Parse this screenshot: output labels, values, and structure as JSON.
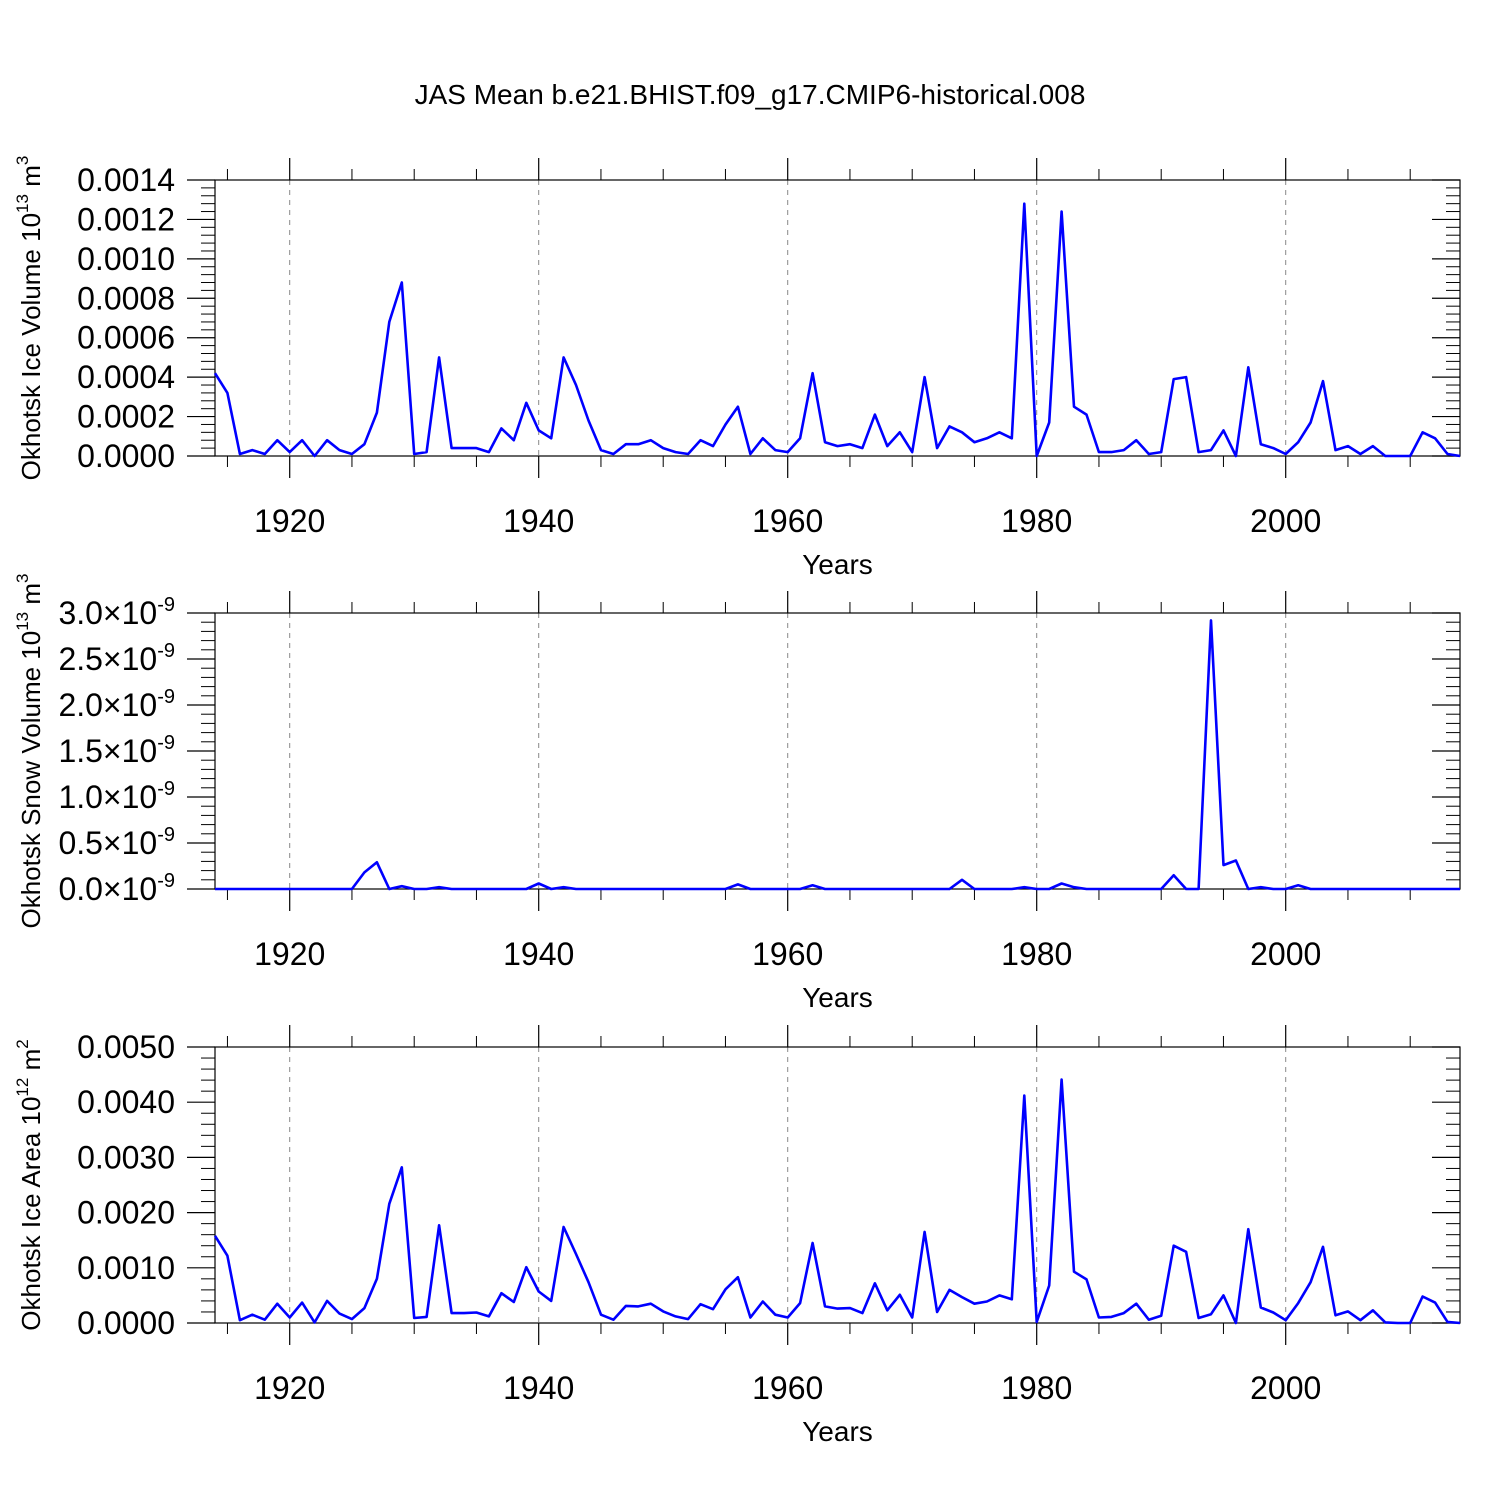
{
  "figure": {
    "title": "JAS Mean b.e21.BHIST.f09_g17.CMIP6-historical.008"
  },
  "colors": {
    "line": "#0000ff",
    "axis": "#000000",
    "grid": "#888888"
  },
  "chart_data": [
    {
      "type": "line",
      "xlabel": "Years",
      "ylabel": "Okhotsk Ice Volume 10",
      "ylabel_exp": "13",
      "ylabel_unit": " m",
      "ylabel_unit_exp": "3",
      "xlim": [
        1914,
        2014
      ],
      "ylim": [
        0,
        0.0014
      ],
      "xticks": [
        1920,
        1940,
        1960,
        1980,
        2000
      ],
      "xtick_labels": [
        "1920",
        "1940",
        "1960",
        "1980",
        "2000"
      ],
      "yticks": [
        0,
        0.0002,
        0.0004,
        0.0006,
        0.0008,
        0.001,
        0.0012,
        0.0014
      ],
      "ytick_labels": [
        "0.0000",
        "0.0002",
        "0.0004",
        "0.0006",
        "0.0008",
        "0.0010",
        "0.0012",
        "0.0014"
      ],
      "grid": "vertical dashed at major x ticks",
      "x_start": 1914,
      "values": [
        0.00042,
        0.00032,
        1e-05,
        3e-05,
        1e-05,
        8e-05,
        2e-05,
        8e-05,
        0.0,
        8e-05,
        3e-05,
        1e-05,
        6e-05,
        0.00022,
        0.00068,
        0.00088,
        1e-05,
        2e-05,
        0.0005,
        4e-05,
        4e-05,
        4e-05,
        2e-05,
        0.00014,
        8e-05,
        0.00027,
        0.00013,
        9e-05,
        0.0005,
        0.00036,
        0.00018,
        3e-05,
        1e-05,
        6e-05,
        6e-05,
        8e-05,
        4e-05,
        2e-05,
        1e-05,
        8e-05,
        5e-05,
        0.00016,
        0.00025,
        1e-05,
        9e-05,
        3e-05,
        2e-05,
        9e-05,
        0.00042,
        7e-05,
        5e-05,
        6e-05,
        4e-05,
        0.00021,
        5e-05,
        0.00012,
        2e-05,
        0.0004,
        4e-05,
        0.00015,
        0.00012,
        7e-05,
        9e-05,
        0.00012,
        9e-05,
        0.00128,
        0.0,
        0.00017,
        0.00124,
        0.00025,
        0.00021,
        2e-05,
        2e-05,
        3e-05,
        8e-05,
        1e-05,
        2e-05,
        0.00039,
        0.0004,
        2e-05,
        3e-05,
        0.00013,
        0.0,
        0.00045,
        6e-05,
        4e-05,
        1e-05,
        7e-05,
        0.00017,
        0.00038,
        3e-05,
        5e-05,
        1e-05,
        5e-05,
        0.0,
        0.0,
        0.0,
        0.00012,
        9e-05,
        1e-05,
        0.0
      ]
    },
    {
      "type": "line",
      "xlabel": "Years",
      "ylabel": "Okhotsk Snow Volume 10",
      "ylabel_exp": "13",
      "ylabel_unit": " m",
      "ylabel_unit_exp": "3",
      "xlim": [
        1914,
        2014
      ],
      "ylim": [
        0,
        3e-09
      ],
      "xticks": [
        1920,
        1940,
        1960,
        1980,
        2000
      ],
      "xtick_labels": [
        "1920",
        "1940",
        "1960",
        "1980",
        "2000"
      ],
      "yticks": [
        0,
        5e-10,
        1e-09,
        1.5e-09,
        2e-09,
        2.5e-09,
        3e-09
      ],
      "ytick_mantissas": [
        "0.0",
        "0.5",
        "1.0",
        "1.5",
        "2.0",
        "2.5",
        "3.0"
      ],
      "ytick_times": "×10",
      "ytick_exponent": "-9",
      "grid": "vertical dashed at major x ticks",
      "x_start": 1914,
      "values": [
        0,
        0,
        0,
        0,
        0,
        0,
        0,
        0,
        0,
        0,
        0,
        0,
        1.8e-10,
        2.9e-10,
        0,
        3e-11,
        0,
        0,
        2e-11,
        0,
        0,
        0,
        0,
        0,
        0,
        0,
        6e-11,
        0,
        2e-11,
        0,
        0,
        0,
        0,
        0,
        0,
        0,
        0,
        0,
        0,
        0,
        0,
        0,
        5e-11,
        0,
        0,
        0,
        0,
        0,
        4e-11,
        0,
        0,
        0,
        0,
        0,
        0,
        0,
        0,
        0,
        0,
        0,
        1e-10,
        0,
        0,
        0,
        0,
        2e-11,
        0,
        0,
        6e-11,
        2e-11,
        0,
        0,
        0,
        0,
        0,
        0,
        0,
        1.5e-10,
        0,
        0,
        2.92e-09,
        2.6e-10,
        3.1e-10,
        0,
        2e-11,
        0,
        0,
        4e-11,
        0,
        0,
        0,
        0,
        0,
        0,
        0,
        0,
        0,
        0,
        0,
        0,
        0
      ]
    },
    {
      "type": "line",
      "xlabel": "Years",
      "ylabel": "Okhotsk Ice Area 10",
      "ylabel_exp": "12",
      "ylabel_unit": " m",
      "ylabel_unit_exp": "2",
      "xlim": [
        1914,
        2014
      ],
      "ylim": [
        0,
        0.005
      ],
      "xticks": [
        1920,
        1940,
        1960,
        1980,
        2000
      ],
      "xtick_labels": [
        "1920",
        "1940",
        "1960",
        "1980",
        "2000"
      ],
      "yticks": [
        0,
        0.001,
        0.002,
        0.003,
        0.004,
        0.005
      ],
      "ytick_labels": [
        "0.0000",
        "0.0010",
        "0.0020",
        "0.0030",
        "0.0040",
        "0.0050"
      ],
      "grid": "vertical dashed at major x ticks",
      "x_start": 1914,
      "values": [
        0.00158,
        0.00122,
        5e-05,
        0.00015,
        6e-05,
        0.00035,
        0.0001,
        0.00037,
        1e-05,
        0.0004,
        0.00017,
        7e-05,
        0.00027,
        0.0008,
        0.00216,
        0.00282,
        9e-05,
        0.00011,
        0.00177,
        0.00018,
        0.00018,
        0.00019,
        0.00012,
        0.00054,
        0.00038,
        0.00101,
        0.00057,
        0.0004,
        0.00174,
        0.00125,
        0.00074,
        0.00015,
        6e-05,
        0.00031,
        0.0003,
        0.00035,
        0.00021,
        0.00012,
        7e-05,
        0.00034,
        0.00025,
        0.00061,
        0.00083,
        0.0001,
        0.00039,
        0.00015,
        0.0001,
        0.00036,
        0.00145,
        0.0003,
        0.00026,
        0.00027,
        0.00018,
        0.00072,
        0.00023,
        0.00051,
        0.0001,
        0.00165,
        0.0002,
        0.0006,
        0.00047,
        0.00035,
        0.00039,
        0.0005,
        0.00043,
        0.00412,
        2e-05,
        0.00068,
        0.00441,
        0.00093,
        0.00079,
        0.0001,
        0.00011,
        0.00018,
        0.00035,
        6e-05,
        0.00013,
        0.0014,
        0.00129,
        9e-05,
        0.00016,
        0.0005,
        0.0,
        0.0017,
        0.00028,
        0.00019,
        5e-05,
        0.00036,
        0.00074,
        0.00138,
        0.00014,
        0.00021,
        5e-05,
        0.00023,
        1e-05,
        0.0,
        0.0,
        0.00048,
        0.00037,
        2e-05,
        0.0
      ]
    }
  ]
}
